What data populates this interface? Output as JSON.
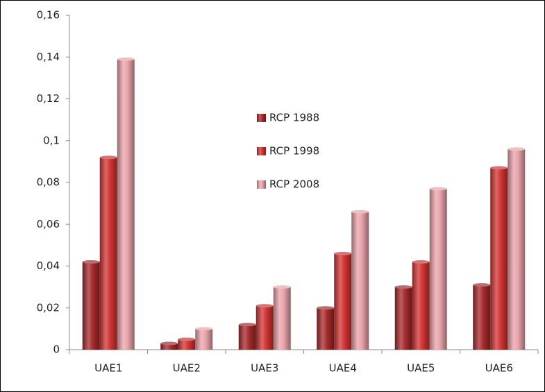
{
  "chart_data": {
    "type": "bar",
    "categories": [
      "UAE1",
      "UAE2",
      "UAE3",
      "UAE4",
      "UAE5",
      "UAE6"
    ],
    "series": [
      {
        "name": "RCP 1988",
        "color": "#a52a2c",
        "values": [
          0.042,
          0.003,
          0.012,
          0.02,
          0.03,
          0.031
        ]
      },
      {
        "name": "RCP 1998",
        "color": "#d23434",
        "values": [
          0.092,
          0.005,
          0.021,
          0.046,
          0.042,
          0.087
        ]
      },
      {
        "name": "RCP 2008",
        "color": "#e9a3ab",
        "values": [
          0.139,
          0.01,
          0.03,
          0.066,
          0.077,
          0.096
        ]
      }
    ],
    "ylim": [
      0,
      0.16
    ],
    "yticks": [
      0,
      {
        "value": 0.02,
        "label": "0,02"
      },
      {
        "value": 0.04,
        "label": "0,04"
      },
      {
        "value": 0.06,
        "label": "0,06"
      },
      {
        "value": 0.08,
        "label": "0,08"
      },
      {
        "value": 0.1,
        "label": "0,1"
      },
      {
        "value": 0.12,
        "label": "0,12"
      },
      {
        "value": 0.14,
        "label": "0,14"
      },
      {
        "value": 0.16,
        "label": "0,16"
      }
    ],
    "grid": false
  }
}
